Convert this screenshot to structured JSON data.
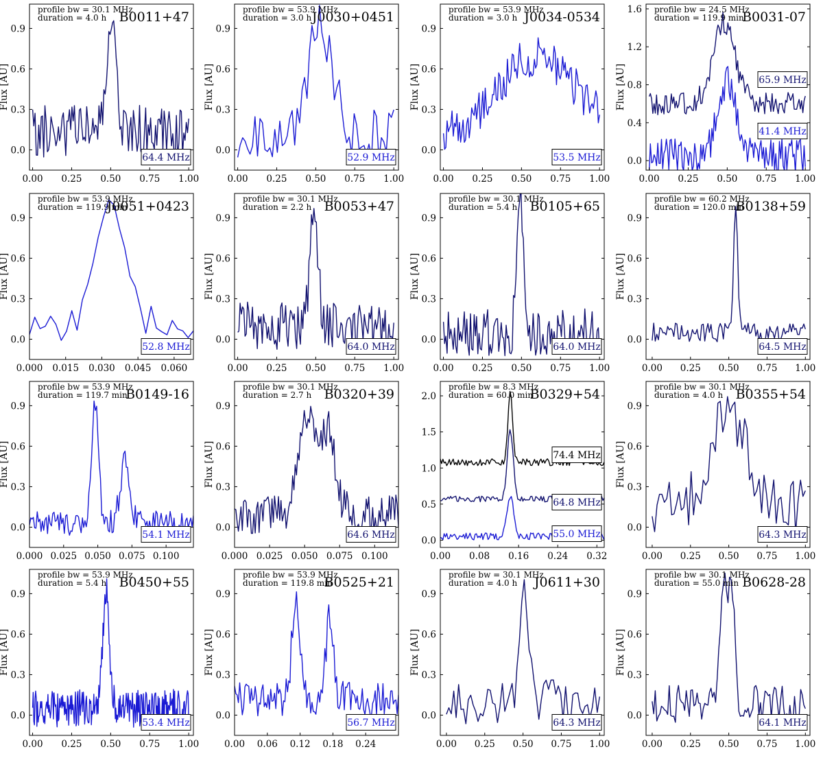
{
  "figure": {
    "type": "pulsar-profile-grid",
    "rows": 4,
    "cols": 4
  },
  "colors": {
    "navy": "#10106e",
    "blue": "#1a1ad4",
    "black": "#000000"
  },
  "chart_data": [
    {
      "type": "line",
      "name": "B0011+47",
      "bw_text": "profile bw = 30.1 MHz",
      "dur_text": "duration = 4.0 h",
      "ylabel": "Flux [AU]",
      "xlim": [
        -0.02,
        1.03
      ],
      "ylim": [
        -0.15,
        1.08
      ],
      "xticks": [
        0,
        0.25,
        0.5,
        0.75,
        1.0
      ],
      "xtick_labels": [
        "0.00",
        "0.25",
        "0.50",
        "0.75",
        "1.00"
      ],
      "yticks": [
        0,
        0.3,
        0.6,
        0.9
      ],
      "ytick_labels": [
        "0.0",
        "0.3",
        "0.6",
        "0.9"
      ],
      "series": [
        {
          "label": "64.4 MHz",
          "color": "#10106e",
          "profile": "single",
          "center": 0.505,
          "width": 0.03,
          "amp": 0.85,
          "base": 0.13,
          "noise": 0.2,
          "seed": 11,
          "n": 128
        }
      ]
    },
    {
      "type": "line",
      "name": "J0030+0451",
      "bw_text": "profile bw = 53.9 MHz",
      "dur_text": "duration = 3.0 h",
      "ylabel": "Flux [AU]",
      "xlim": [
        -0.02,
        1.03
      ],
      "ylim": [
        -0.15,
        1.08
      ],
      "xticks": [
        0,
        0.25,
        0.5,
        0.75,
        1.0
      ],
      "xtick_labels": [
        "0.00",
        "0.25",
        "0.50",
        "0.75",
        "1.00"
      ],
      "yticks": [
        0,
        0.3,
        0.6,
        0.9
      ],
      "ytick_labels": [
        "0.0",
        "0.3",
        "0.6",
        "0.9"
      ],
      "series": [
        {
          "label": "52.9 MHz",
          "color": "#1a1ad4",
          "profile": "single",
          "center": 0.53,
          "width": 0.08,
          "amp": 0.8,
          "base": 0.1,
          "noise": 0.2,
          "seed": 21,
          "n": 64
        }
      ]
    },
    {
      "type": "line",
      "name": "J0034-0534",
      "bw_text": "profile bw = 53.9 MHz",
      "dur_text": "duration = 3.0 h",
      "ylabel": "Flux [AU]",
      "xlim": [
        -0.02,
        1.03
      ],
      "ylim": [
        -0.15,
        1.08
      ],
      "xticks": [
        0,
        0.25,
        0.5,
        0.75,
        1.0
      ],
      "xtick_labels": [
        "0.00",
        "0.25",
        "0.50",
        "0.75",
        "1.00"
      ],
      "yticks": [
        0,
        0.3,
        0.6,
        0.9
      ],
      "ytick_labels": [
        "0.0",
        "0.3",
        "0.6",
        "0.9"
      ],
      "series": [
        {
          "label": "53.5 MHz",
          "color": "#1a1ad4",
          "profile": "broad",
          "center": 0.6,
          "width": 0.25,
          "amp": 0.6,
          "base": 0.1,
          "noise": 0.15,
          "seed": 31,
          "n": 128
        }
      ]
    },
    {
      "type": "line",
      "name": "B0031-07",
      "bw_text": "profile bw = 24.5 MHz",
      "dur_text": "duration = 119.9 min",
      "ylabel": "Flux [AU]",
      "xlim": [
        -0.02,
        1.03
      ],
      "ylim": [
        -0.1,
        1.65
      ],
      "xticks": [
        0,
        0.25,
        0.5,
        0.75,
        1.0
      ],
      "xtick_labels": [
        "0.00",
        "0.25",
        "0.50",
        "0.75",
        "1.00"
      ],
      "yticks": [
        0,
        0.4,
        0.8,
        1.2,
        1.6
      ],
      "ytick_labels": [
        "0.0",
        "0.4",
        "0.8",
        "1.2",
        "1.6"
      ],
      "series": [
        {
          "label": "65.9 MHz",
          "color": "#10106e",
          "profile": "broad",
          "center": 0.48,
          "width": 0.07,
          "amp": 0.85,
          "base": 0.6,
          "noise": 0.12,
          "seed": 41,
          "n": 128
        },
        {
          "label": "41.4 MHz",
          "color": "#1a1ad4",
          "profile": "broad",
          "center": 0.5,
          "width": 0.06,
          "amp": 0.8,
          "base": 0.05,
          "noise": 0.18,
          "seed": 42,
          "n": 128
        }
      ]
    },
    {
      "type": "line",
      "name": "J0051+0423",
      "bw_text": "profile bw = 53.9 MHz",
      "dur_text": "duration = 119.9 min",
      "ylabel": "Flux [AU]",
      "xlim": [
        0,
        0.068
      ],
      "ylim": [
        -0.15,
        1.08
      ],
      "xticks": [
        0,
        0.015,
        0.03,
        0.045,
        0.06
      ],
      "xtick_labels": [
        "0.000",
        "0.015",
        "0.030",
        "0.045",
        "0.060"
      ],
      "yticks": [
        0,
        0.3,
        0.6,
        0.9
      ],
      "ytick_labels": [
        "0.0",
        "0.3",
        "0.6",
        "0.9"
      ],
      "series": [
        {
          "label": "52.8 MHz",
          "color": "#1a1ad4",
          "profile": "broad",
          "center": 0.034,
          "width": 0.0055,
          "amp": 0.85,
          "base": 0.12,
          "noise": 0.13,
          "seed": 51,
          "n": 32
        }
      ]
    },
    {
      "type": "line",
      "name": "B0053+47",
      "bw_text": "profile bw = 30.1 MHz",
      "dur_text": "duration = 2.2 h",
      "ylabel": "Flux [AU]",
      "xlim": [
        -0.02,
        1.03
      ],
      "ylim": [
        -0.15,
        1.08
      ],
      "xticks": [
        0,
        0.25,
        0.5,
        0.75,
        1.0
      ],
      "xtick_labels": [
        "0.00",
        "0.25",
        "0.50",
        "0.75",
        "1.00"
      ],
      "yticks": [
        0,
        0.3,
        0.6,
        0.9
      ],
      "ytick_labels": [
        "0.0",
        "0.3",
        "0.6",
        "0.9"
      ],
      "series": [
        {
          "label": "64.0 MHz",
          "color": "#10106e",
          "profile": "single",
          "center": 0.49,
          "width": 0.025,
          "amp": 0.85,
          "base": 0.1,
          "noise": 0.18,
          "seed": 61,
          "n": 128
        }
      ]
    },
    {
      "type": "line",
      "name": "B0105+65",
      "bw_text": "profile bw = 30.1 MHz",
      "dur_text": "duration = 5.4 h",
      "ylabel": "Flux [AU]",
      "xlim": [
        -0.02,
        1.03
      ],
      "ylim": [
        -0.15,
        1.08
      ],
      "xticks": [
        0,
        0.25,
        0.5,
        0.75,
        1.0
      ],
      "xtick_labels": [
        "0.00",
        "0.25",
        "0.50",
        "0.75",
        "1.00"
      ],
      "yticks": [
        0,
        0.3,
        0.6,
        0.9
      ],
      "ytick_labels": [
        "0.0",
        "0.3",
        "0.6",
        "0.9"
      ],
      "series": [
        {
          "label": "64.0 MHz",
          "color": "#10106e",
          "profile": "single",
          "center": 0.495,
          "width": 0.022,
          "amp": 0.95,
          "base": 0.05,
          "noise": 0.18,
          "seed": 71,
          "n": 128
        }
      ]
    },
    {
      "type": "line",
      "name": "B0138+59",
      "bw_text": "profile bw = 60.2 MHz",
      "dur_text": "duration = 120.0 min",
      "ylabel": "Flux [AU]",
      "xlim": [
        -0.04,
        1.03
      ],
      "ylim": [
        -0.15,
        1.08
      ],
      "xticks": [
        0,
        0.25,
        0.5,
        0.75,
        1.0
      ],
      "xtick_labels": [
        "0.00",
        "0.25",
        "0.50",
        "0.75",
        "1.00"
      ],
      "yticks": [
        0,
        0.3,
        0.6,
        0.9
      ],
      "ytick_labels": [
        "0.0",
        "0.3",
        "0.6",
        "0.9"
      ],
      "series": [
        {
          "label": "64.5 MHz",
          "color": "#10106e",
          "profile": "single",
          "center": 0.545,
          "width": 0.014,
          "amp": 0.95,
          "base": 0.05,
          "noise": 0.07,
          "seed": 81,
          "n": 100
        }
      ]
    },
    {
      "type": "line",
      "name": "B0149-16",
      "bw_text": "profile bw = 53.9 MHz",
      "dur_text": "duration = 119.7 min",
      "ylabel": "Flux [AU]",
      "xlim": [
        0,
        0.12
      ],
      "ylim": [
        -0.15,
        1.08
      ],
      "xticks": [
        0,
        0.025,
        0.05,
        0.075,
        0.1
      ],
      "xtick_labels": [
        "0.000",
        "0.025",
        "0.050",
        "0.075",
        "0.100"
      ],
      "yticks": [
        0,
        0.3,
        0.6,
        0.9
      ],
      "ytick_labels": [
        "0.0",
        "0.3",
        "0.6",
        "0.9"
      ],
      "series": [
        {
          "label": "54.1 MHz",
          "color": "#1a1ad4",
          "profile": "double",
          "center": 0.048,
          "width": 0.0025,
          "amp": 0.92,
          "center2": 0.07,
          "width2": 0.0035,
          "amp2": 0.45,
          "base": 0.03,
          "noise": 0.09,
          "seed": 91,
          "n": 128
        }
      ]
    },
    {
      "type": "line",
      "name": "B0320+39",
      "bw_text": "profile bw = 30.1 MHz",
      "dur_text": "duration = 2.7 h",
      "ylabel": "Flux [AU]",
      "xlim": [
        0,
        0.117
      ],
      "ylim": [
        -0.15,
        1.08
      ],
      "xticks": [
        0,
        0.025,
        0.05,
        0.075,
        0.1
      ],
      "xtick_labels": [
        "0.000",
        "0.025",
        "0.050",
        "0.075",
        "0.100"
      ],
      "yticks": [
        0,
        0.3,
        0.6,
        0.9
      ],
      "ytick_labels": [
        "0.0",
        "0.3",
        "0.6",
        "0.9"
      ],
      "series": [
        {
          "label": "64.6 MHz",
          "color": "#10106e",
          "profile": "double",
          "center": 0.052,
          "width": 0.006,
          "amp": 0.75,
          "center2": 0.067,
          "width2": 0.005,
          "amp2": 0.6,
          "base": 0.1,
          "noise": 0.15,
          "seed": 101,
          "n": 128
        }
      ]
    },
    {
      "type": "line",
      "name": "B0329+54",
      "bw_text": "profile bw = 8.3 MHz",
      "dur_text": "duration = 60.0 min",
      "ylabel": "",
      "xlim": [
        0,
        0.335
      ],
      "ylim": [
        -0.1,
        2.2
      ],
      "xticks": [
        0,
        0.08,
        0.16,
        0.24,
        0.32
      ],
      "xtick_labels": [
        "0.00",
        "0.08",
        "0.16",
        "0.24",
        "0.32"
      ],
      "yticks": [
        0,
        0.5,
        1.0,
        1.5,
        2.0
      ],
      "ytick_labels": [
        "0.0",
        "0.5",
        "1.0",
        "1.5",
        "2.0"
      ],
      "series": [
        {
          "label": "74.4 MHz",
          "color": "#000000",
          "profile": "single",
          "center": 0.143,
          "width": 0.005,
          "amp": 0.95,
          "base": 1.08,
          "noise": 0.05,
          "seed": 111,
          "n": 128
        },
        {
          "label": "64.8 MHz",
          "color": "#10106e",
          "profile": "single",
          "center": 0.143,
          "width": 0.006,
          "amp": 0.95,
          "base": 0.57,
          "noise": 0.04,
          "seed": 112,
          "n": 128
        },
        {
          "label": "55.0 MHz",
          "color": "#1a1ad4",
          "profile": "single",
          "center": 0.143,
          "width": 0.007,
          "amp": 0.55,
          "base": 0.05,
          "noise": 0.05,
          "seed": 113,
          "n": 128
        }
      ]
    },
    {
      "type": "line",
      "name": "B0355+54",
      "bw_text": "profile bw = 30.1 MHz",
      "dur_text": "duration = 4.0 h",
      "ylabel": "Flux [AU]",
      "xlim": [
        -0.04,
        1.03
      ],
      "ylim": [
        -0.15,
        1.08
      ],
      "xticks": [
        0,
        0.25,
        0.5,
        0.75,
        1.0
      ],
      "xtick_labels": [
        "0.00",
        "0.25",
        "0.50",
        "0.75",
        "1.00"
      ],
      "yticks": [
        0,
        0.3,
        0.6,
        0.9
      ],
      "ytick_labels": [
        "0.0",
        "0.3",
        "0.6",
        "0.9"
      ],
      "series": [
        {
          "label": "64.3 MHz",
          "color": "#10106e",
          "profile": "broad",
          "center": 0.5,
          "width": 0.12,
          "amp": 0.7,
          "base": 0.15,
          "noise": 0.2,
          "seed": 121,
          "n": 64
        }
      ]
    },
    {
      "type": "line",
      "name": "B0450+55",
      "bw_text": "profile bw = 53.9 MHz",
      "dur_text": "duration = 5.4 h",
      "ylabel": "Flux [AU]",
      "xlim": [
        -0.02,
        1.03
      ],
      "ylim": [
        -0.15,
        1.08
      ],
      "xticks": [
        0,
        0.25,
        0.5,
        0.75,
        1.0
      ],
      "xtick_labels": [
        "0.00",
        "0.25",
        "0.50",
        "0.75",
        "1.00"
      ],
      "yticks": [
        0,
        0.3,
        0.6,
        0.9
      ],
      "ytick_labels": [
        "0.0",
        "0.3",
        "0.6",
        "0.9"
      ],
      "series": [
        {
          "label": "53.4 MHz",
          "color": "#1a1ad4",
          "profile": "single",
          "center": 0.47,
          "width": 0.02,
          "amp": 0.85,
          "base": 0.05,
          "noise": 0.14,
          "seed": 131,
          "n": 256
        }
      ]
    },
    {
      "type": "line",
      "name": "B0525+21",
      "bw_text": "profile bw = 53.9 MHz",
      "dur_text": "duration = 119.8 min",
      "ylabel": "Flux [AU]",
      "xlim": [
        0,
        0.3
      ],
      "ylim": [
        -0.15,
        1.08
      ],
      "xticks": [
        0,
        0.06,
        0.12,
        0.18,
        0.24
      ],
      "xtick_labels": [
        "0.00",
        "0.06",
        "0.12",
        "0.18",
        "0.24"
      ],
      "yticks": [
        0,
        0.3,
        0.6,
        0.9
      ],
      "ytick_labels": [
        "0.0",
        "0.3",
        "0.6",
        "0.9"
      ],
      "series": [
        {
          "label": "56.7 MHz",
          "color": "#1a1ad4",
          "profile": "double",
          "center": 0.112,
          "width": 0.007,
          "amp": 0.75,
          "center2": 0.174,
          "width2": 0.007,
          "amp2": 0.6,
          "base": 0.12,
          "noise": 0.13,
          "seed": 141,
          "n": 128
        }
      ]
    },
    {
      "type": "line",
      "name": "J0611+30",
      "bw_text": "profile bw = 30.1 MHz",
      "dur_text": "duration = 4.0 h",
      "ylabel": "Flux [AU]",
      "xlim": [
        -0.04,
        1.03
      ],
      "ylim": [
        -0.15,
        1.08
      ],
      "xticks": [
        0,
        0.25,
        0.5,
        0.75,
        1.0
      ],
      "xtick_labels": [
        "0.00",
        "0.25",
        "0.50",
        "0.75",
        "1.00"
      ],
      "yticks": [
        0,
        0.3,
        0.6,
        0.9
      ],
      "ytick_labels": [
        "0.0",
        "0.3",
        "0.6",
        "0.9"
      ],
      "series": [
        {
          "label": "64.3 MHz",
          "color": "#10106e",
          "profile": "single",
          "center": 0.51,
          "width": 0.03,
          "amp": 0.85,
          "base": 0.1,
          "noise": 0.17,
          "seed": 151,
          "n": 64
        }
      ]
    },
    {
      "type": "line",
      "name": "B0628-28",
      "bw_text": "profile bw = 30.1 MHz",
      "dur_text": "duration = 55.0 min",
      "ylabel": "Flux [AU]",
      "xlim": [
        -0.04,
        1.03
      ],
      "ylim": [
        -0.15,
        1.08
      ],
      "xticks": [
        0,
        0.25,
        0.5,
        0.75,
        1.0
      ],
      "xtick_labels": [
        "0.00",
        "0.25",
        "0.50",
        "0.75",
        "1.00"
      ],
      "yticks": [
        0,
        0.3,
        0.6,
        0.9
      ],
      "ytick_labels": [
        "0.0",
        "0.3",
        "0.6",
        "0.9"
      ],
      "series": [
        {
          "label": "64.1 MHz",
          "color": "#10106e",
          "profile": "plateau",
          "center": 0.49,
          "width": 0.035,
          "amp": 0.85,
          "base": 0.08,
          "noise": 0.14,
          "seed": 161,
          "n": 100
        }
      ]
    }
  ]
}
